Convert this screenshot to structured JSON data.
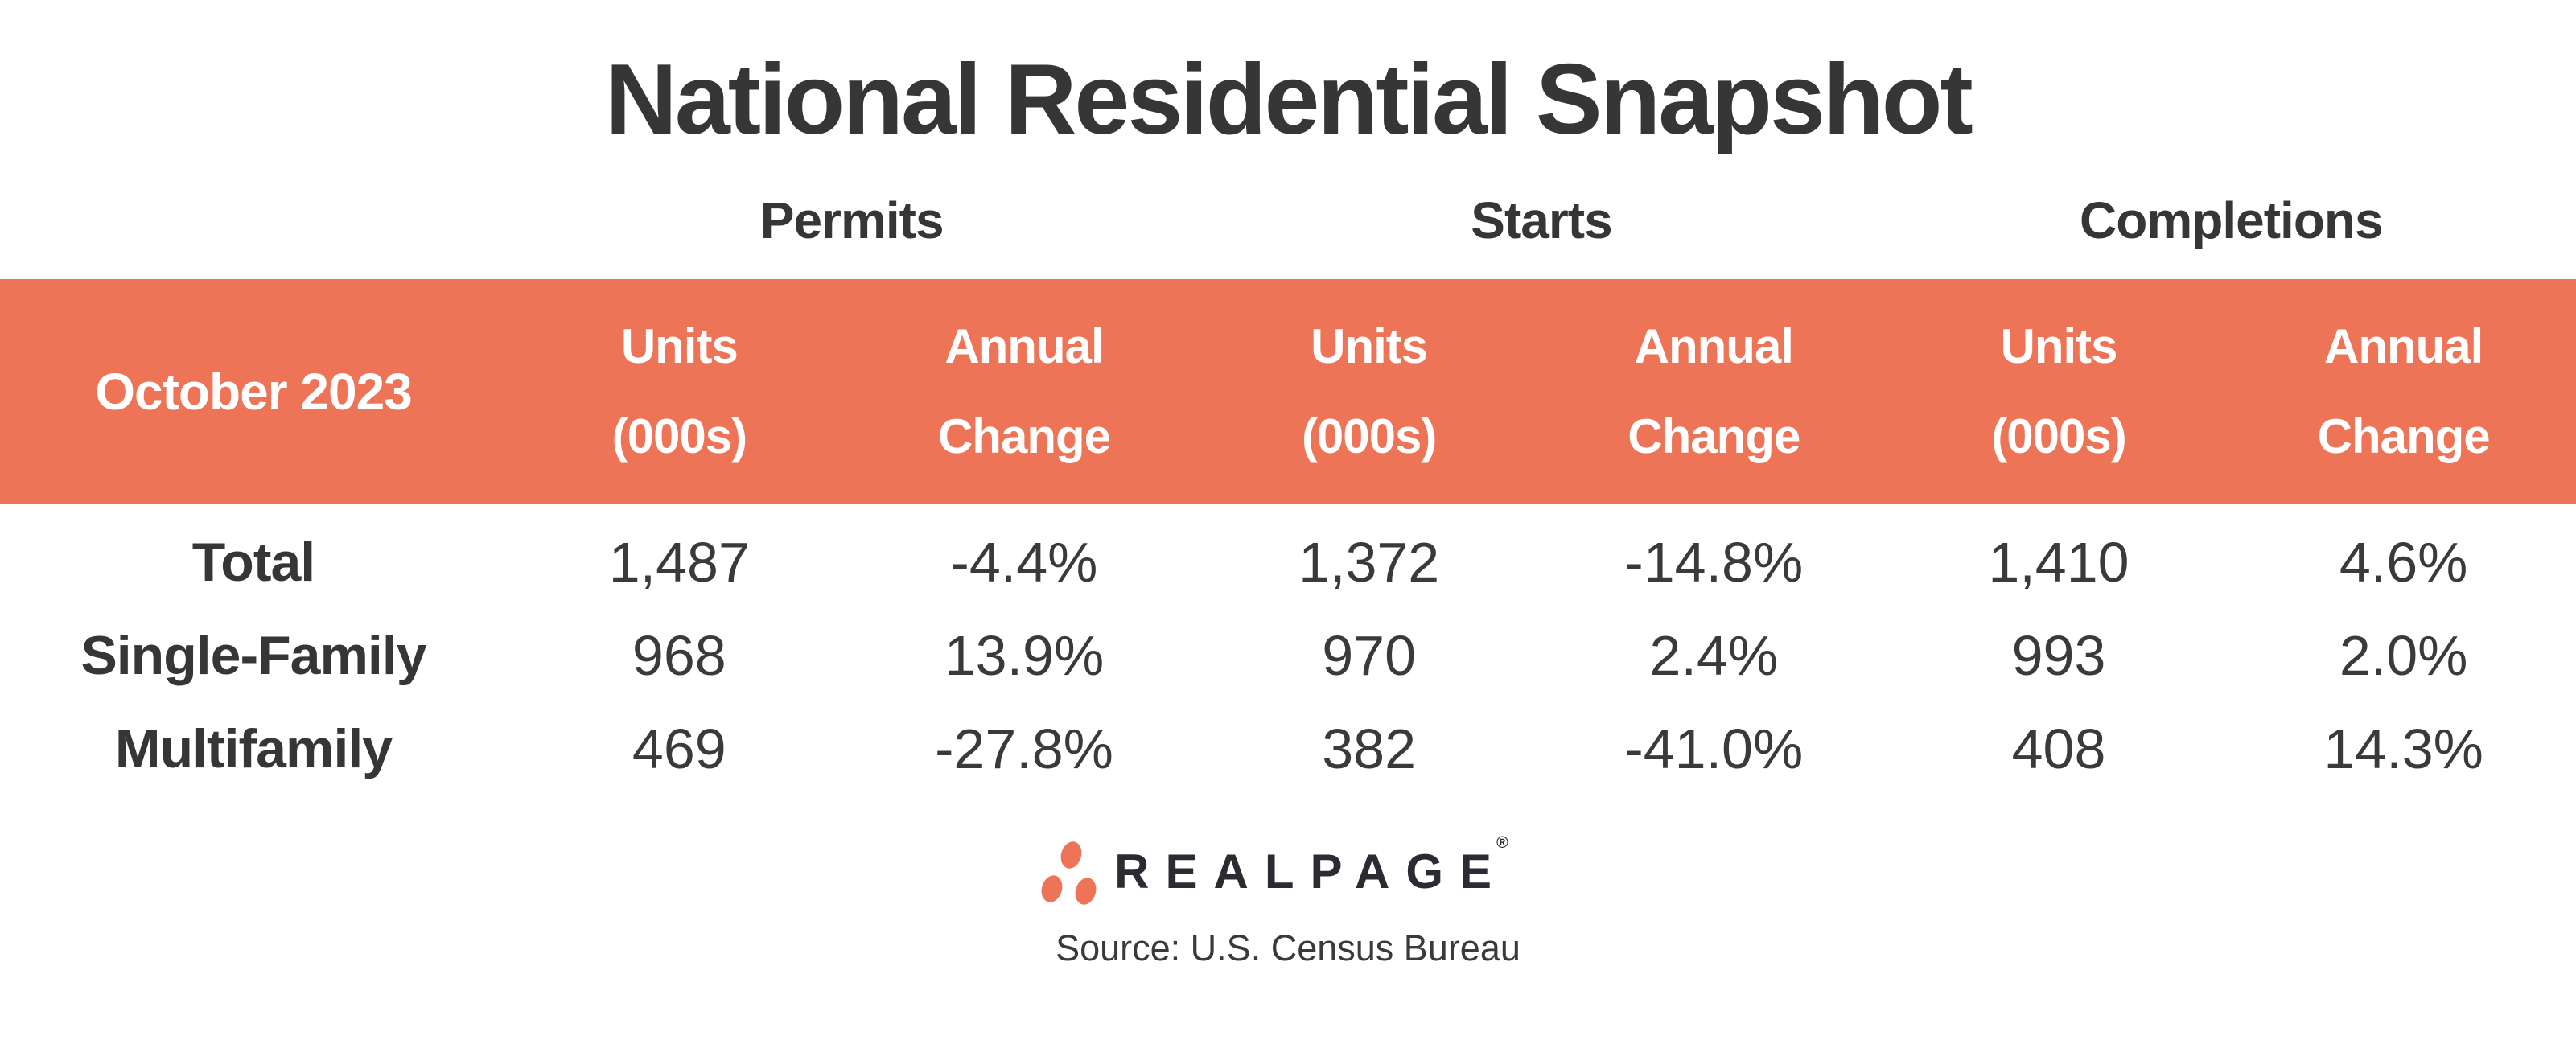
{
  "colors": {
    "accent_orange": "#ED7456",
    "heading_text": "#363636",
    "body_text": "#3A3A3A",
    "band_text": "#FFFFFF",
    "logo_text": "#2B2B33",
    "background": "#FFFFFF"
  },
  "title": "National Residential Snapshot",
  "sections": [
    {
      "label": "Permits"
    },
    {
      "label": "Starts"
    },
    {
      "label": "Completions"
    }
  ],
  "band": {
    "period_label": "October 2023",
    "units_header_line1": "Units",
    "units_header_line2": "(000s)",
    "change_header_line1": "Annual",
    "change_header_line2": "Change"
  },
  "rows": [
    {
      "label": "Total",
      "permits_units": "1,487",
      "permits_change": "-4.4%",
      "starts_units": "1,372",
      "starts_change": "-14.8%",
      "completions_units": "1,410",
      "completions_change": "4.6%"
    },
    {
      "label": "Single-Family",
      "permits_units": "968",
      "permits_change": "13.9%",
      "starts_units": "970",
      "starts_change": "2.4%",
      "completions_units": "993",
      "completions_change": "2.0%"
    },
    {
      "label": "Multifamily",
      "permits_units": "469",
      "permits_change": "-27.8%",
      "starts_units": "382",
      "starts_change": "-41.0%",
      "completions_units": "408",
      "completions_change": "14.3%"
    }
  ],
  "footer": {
    "brand": "REALPAGE",
    "registered_mark": "®",
    "source": "Source: U.S. Census Bureau"
  },
  "chart_data": {
    "type": "table",
    "title": "National Residential Snapshot",
    "period": "October 2023",
    "column_groups": [
      "Permits",
      "Starts",
      "Completions"
    ],
    "columns": [
      "Permits Units (000s)",
      "Permits Annual Change",
      "Starts Units (000s)",
      "Starts Annual Change",
      "Completions Units (000s)",
      "Completions Annual Change"
    ],
    "categories": [
      "Total",
      "Single-Family",
      "Multifamily"
    ],
    "series": [
      {
        "name": "Permits Units (000s)",
        "values": [
          1487,
          968,
          469
        ]
      },
      {
        "name": "Permits Annual Change %",
        "values": [
          -4.4,
          13.9,
          -27.8
        ]
      },
      {
        "name": "Starts Units (000s)",
        "values": [
          1372,
          970,
          382
        ]
      },
      {
        "name": "Starts Annual Change %",
        "values": [
          -14.8,
          2.4,
          -41.0
        ]
      },
      {
        "name": "Completions Units (000s)",
        "values": [
          1410,
          993,
          408
        ]
      },
      {
        "name": "Completions Annual Change %",
        "values": [
          4.6,
          2.0,
          14.3
        ]
      }
    ],
    "source": "Source: U.S. Census Bureau"
  }
}
